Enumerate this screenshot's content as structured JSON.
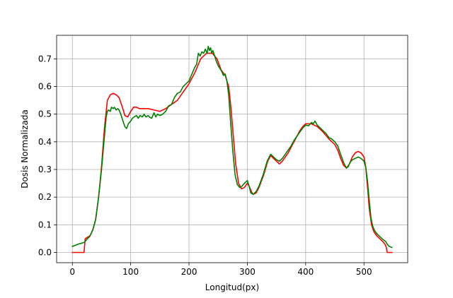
{
  "chart_data": {
    "type": "line",
    "title": "",
    "xlabel": "Longitud(px)",
    "ylabel": "Dosis Normalizada",
    "xlim": [
      -27,
      575
    ],
    "ylim": [
      -0.037,
      0.785
    ],
    "xticks": [
      0,
      100,
      200,
      300,
      400,
      500
    ],
    "yticks": [
      0.0,
      0.1,
      0.2,
      0.3,
      0.4,
      0.5,
      0.6,
      0.7
    ],
    "xtick_labels": [
      "0",
      "100",
      "200",
      "300",
      "400",
      "500"
    ],
    "ytick_labels": [
      "0.0",
      "0.1",
      "0.2",
      "0.3",
      "0.4",
      "0.5",
      "0.6",
      "0.7"
    ],
    "grid": true,
    "series": [
      {
        "color": "#ff0000",
        "points": [
          [
            0,
            0.0
          ],
          [
            10,
            0.0
          ],
          [
            20,
            0.0
          ],
          [
            22,
            0.05
          ],
          [
            30,
            0.06
          ],
          [
            35,
            0.08
          ],
          [
            40,
            0.12
          ],
          [
            45,
            0.2
          ],
          [
            50,
            0.31
          ],
          [
            55,
            0.45
          ],
          [
            60,
            0.55
          ],
          [
            65,
            0.57
          ],
          [
            70,
            0.575
          ],
          [
            75,
            0.57
          ],
          [
            80,
            0.56
          ],
          [
            85,
            0.53
          ],
          [
            90,
            0.495
          ],
          [
            95,
            0.49
          ],
          [
            100,
            0.51
          ],
          [
            105,
            0.525
          ],
          [
            110,
            0.525
          ],
          [
            115,
            0.52
          ],
          [
            130,
            0.52
          ],
          [
            140,
            0.515
          ],
          [
            150,
            0.51
          ],
          [
            160,
            0.52
          ],
          [
            170,
            0.535
          ],
          [
            180,
            0.55
          ],
          [
            190,
            0.58
          ],
          [
            200,
            0.61
          ],
          [
            210,
            0.65
          ],
          [
            220,
            0.7
          ],
          [
            230,
            0.72
          ],
          [
            240,
            0.72
          ],
          [
            248,
            0.7
          ],
          [
            255,
            0.66
          ],
          [
            262,
            0.64
          ],
          [
            268,
            0.6
          ],
          [
            272,
            0.52
          ],
          [
            276,
            0.42
          ],
          [
            280,
            0.32
          ],
          [
            285,
            0.25
          ],
          [
            290,
            0.23
          ],
          [
            295,
            0.235
          ],
          [
            300,
            0.25
          ],
          [
            303,
            0.24
          ],
          [
            307,
            0.22
          ],
          [
            310,
            0.21
          ],
          [
            315,
            0.215
          ],
          [
            320,
            0.235
          ],
          [
            328,
            0.28
          ],
          [
            335,
            0.33
          ],
          [
            340,
            0.35
          ],
          [
            345,
            0.34
          ],
          [
            350,
            0.33
          ],
          [
            355,
            0.32
          ],
          [
            360,
            0.33
          ],
          [
            365,
            0.345
          ],
          [
            370,
            0.36
          ],
          [
            375,
            0.38
          ],
          [
            380,
            0.4
          ],
          [
            385,
            0.42
          ],
          [
            390,
            0.44
          ],
          [
            395,
            0.455
          ],
          [
            400,
            0.465
          ],
          [
            405,
            0.465
          ],
          [
            410,
            0.465
          ],
          [
            415,
            0.46
          ],
          [
            420,
            0.455
          ],
          [
            425,
            0.445
          ],
          [
            430,
            0.435
          ],
          [
            440,
            0.41
          ],
          [
            450,
            0.39
          ],
          [
            455,
            0.37
          ],
          [
            460,
            0.34
          ],
          [
            465,
            0.315
          ],
          [
            470,
            0.305
          ],
          [
            475,
            0.32
          ],
          [
            480,
            0.345
          ],
          [
            485,
            0.36
          ],
          [
            490,
            0.365
          ],
          [
            495,
            0.36
          ],
          [
            500,
            0.345
          ],
          [
            503,
            0.31
          ],
          [
            506,
            0.24
          ],
          [
            509,
            0.16
          ],
          [
            513,
            0.1
          ],
          [
            517,
            0.075
          ],
          [
            522,
            0.06
          ],
          [
            527,
            0.05
          ],
          [
            532,
            0.04
          ],
          [
            536,
            0.03
          ],
          [
            538,
            0.02
          ],
          [
            540,
            0.0
          ],
          [
            548,
            0.0
          ]
        ]
      },
      {
        "color": "#008000",
        "points": [
          [
            0,
            0.022
          ],
          [
            5,
            0.026
          ],
          [
            10,
            0.03
          ],
          [
            15,
            0.033
          ],
          [
            20,
            0.036
          ],
          [
            22,
            0.04
          ],
          [
            25,
            0.048
          ],
          [
            30,
            0.058
          ],
          [
            35,
            0.082
          ],
          [
            40,
            0.12
          ],
          [
            45,
            0.2
          ],
          [
            50,
            0.3
          ],
          [
            55,
            0.42
          ],
          [
            58,
            0.49
          ],
          [
            60,
            0.51
          ],
          [
            62,
            0.515
          ],
          [
            65,
            0.51
          ],
          [
            67,
            0.525
          ],
          [
            70,
            0.52
          ],
          [
            72,
            0.525
          ],
          [
            75,
            0.515
          ],
          [
            78,
            0.52
          ],
          [
            80,
            0.515
          ],
          [
            83,
            0.5
          ],
          [
            86,
            0.48
          ],
          [
            90,
            0.455
          ],
          [
            93,
            0.448
          ],
          [
            96,
            0.465
          ],
          [
            100,
            0.475
          ],
          [
            103,
            0.485
          ],
          [
            106,
            0.49
          ],
          [
            110,
            0.495
          ],
          [
            113,
            0.485
          ],
          [
            116,
            0.495
          ],
          [
            120,
            0.49
          ],
          [
            123,
            0.5
          ],
          [
            126,
            0.49
          ],
          [
            130,
            0.495
          ],
          [
            133,
            0.488
          ],
          [
            136,
            0.485
          ],
          [
            140,
            0.505
          ],
          [
            143,
            0.49
          ],
          [
            146,
            0.5
          ],
          [
            150,
            0.495
          ],
          [
            155,
            0.5
          ],
          [
            160,
            0.51
          ],
          [
            165,
            0.53
          ],
          [
            170,
            0.535
          ],
          [
            175,
            0.56
          ],
          [
            180,
            0.575
          ],
          [
            185,
            0.58
          ],
          [
            190,
            0.6
          ],
          [
            195,
            0.61
          ],
          [
            200,
            0.62
          ],
          [
            205,
            0.645
          ],
          [
            210,
            0.67
          ],
          [
            213,
            0.68
          ],
          [
            216,
            0.72
          ],
          [
            219,
            0.71
          ],
          [
            222,
            0.725
          ],
          [
            225,
            0.72
          ],
          [
            228,
            0.735
          ],
          [
            231,
            0.72
          ],
          [
            233,
            0.745
          ],
          [
            235,
            0.73
          ],
          [
            237,
            0.74
          ],
          [
            239,
            0.72
          ],
          [
            241,
            0.73
          ],
          [
            244,
            0.71
          ],
          [
            247,
            0.69
          ],
          [
            250,
            0.675
          ],
          [
            253,
            0.665
          ],
          [
            256,
            0.655
          ],
          [
            259,
            0.64
          ],
          [
            262,
            0.645
          ],
          [
            265,
            0.62
          ],
          [
            268,
            0.57
          ],
          [
            271,
            0.48
          ],
          [
            275,
            0.37
          ],
          [
            279,
            0.28
          ],
          [
            283,
            0.245
          ],
          [
            287,
            0.235
          ],
          [
            291,
            0.24
          ],
          [
            295,
            0.25
          ],
          [
            300,
            0.26
          ],
          [
            303,
            0.24
          ],
          [
            306,
            0.215
          ],
          [
            310,
            0.21
          ],
          [
            315,
            0.22
          ],
          [
            320,
            0.24
          ],
          [
            327,
            0.28
          ],
          [
            334,
            0.33
          ],
          [
            340,
            0.355
          ],
          [
            345,
            0.345
          ],
          [
            350,
            0.335
          ],
          [
            355,
            0.33
          ],
          [
            360,
            0.34
          ],
          [
            365,
            0.355
          ],
          [
            370,
            0.37
          ],
          [
            375,
            0.385
          ],
          [
            380,
            0.405
          ],
          [
            385,
            0.42
          ],
          [
            390,
            0.435
          ],
          [
            395,
            0.45
          ],
          [
            400,
            0.46
          ],
          [
            405,
            0.458
          ],
          [
            410,
            0.47
          ],
          [
            413,
            0.465
          ],
          [
            416,
            0.475
          ],
          [
            420,
            0.46
          ],
          [
            425,
            0.45
          ],
          [
            430,
            0.44
          ],
          [
            435,
            0.43
          ],
          [
            440,
            0.415
          ],
          [
            445,
            0.41
          ],
          [
            450,
            0.4
          ],
          [
            455,
            0.385
          ],
          [
            460,
            0.355
          ],
          [
            465,
            0.325
          ],
          [
            470,
            0.305
          ],
          [
            473,
            0.31
          ],
          [
            476,
            0.325
          ],
          [
            480,
            0.335
          ],
          [
            485,
            0.34
          ],
          [
            490,
            0.345
          ],
          [
            495,
            0.34
          ],
          [
            500,
            0.33
          ],
          [
            503,
            0.31
          ],
          [
            506,
            0.26
          ],
          [
            509,
            0.19
          ],
          [
            512,
            0.125
          ],
          [
            515,
            0.095
          ],
          [
            518,
            0.08
          ],
          [
            522,
            0.068
          ],
          [
            527,
            0.058
          ],
          [
            532,
            0.048
          ],
          [
            537,
            0.04
          ],
          [
            540,
            0.03
          ],
          [
            543,
            0.022
          ],
          [
            546,
            0.02
          ],
          [
            548,
            0.018
          ]
        ]
      }
    ]
  }
}
